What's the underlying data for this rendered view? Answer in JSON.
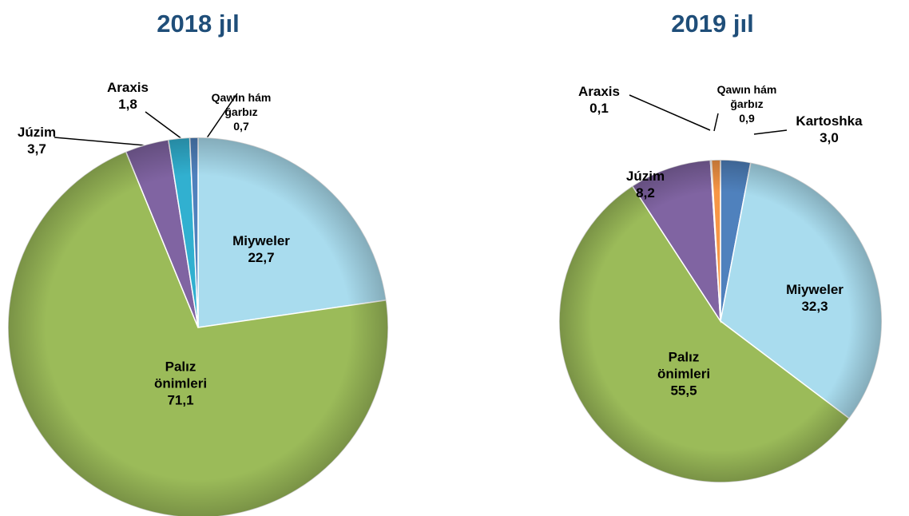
{
  "chart_data": [
    {
      "type": "pie",
      "title": "2018 jıl",
      "categories": [
        "Miyweler",
        "Palız önimleri",
        "Júzim",
        "Araxis",
        "Qawın hám ğarbız"
      ],
      "values": [
        22.7,
        71.1,
        3.7,
        1.8,
        0.7
      ],
      "value_labels": [
        "22,7",
        "71,1",
        "3,7",
        "1,8",
        "0,7"
      ],
      "colors": [
        "#a9dcee",
        "#9bbb59",
        "#8064a2",
        "#31b0d0",
        "#4f81bd"
      ]
    },
    {
      "type": "pie",
      "title": "2019 jıl",
      "categories": [
        "Kartoshka",
        "Miyweler",
        "Palız önimleri",
        "Júzim",
        "Araxis",
        "Qawın hám ğarbız"
      ],
      "values": [
        3.0,
        32.3,
        55.5,
        8.2,
        0.1,
        0.9
      ],
      "value_labels": [
        "3,0",
        "32,3",
        "55,5",
        "8,2",
        "0,1",
        "0,9"
      ],
      "colors": [
        "#4f81bd",
        "#a9dcee",
        "#9bbb59",
        "#8064a2",
        "#c0504d",
        "#f79646"
      ]
    }
  ]
}
